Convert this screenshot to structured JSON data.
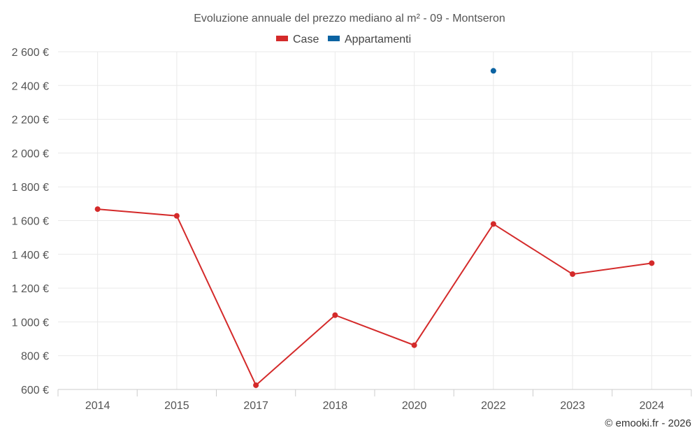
{
  "chart_data": {
    "type": "line",
    "title": "Evoluzione annuale del prezzo mediano al m² - 09 - Montseron",
    "categories": [
      "2014",
      "2015",
      "2017",
      "2018",
      "2020",
      "2022",
      "2023",
      "2024"
    ],
    "series": [
      {
        "name": "Case",
        "color": "#d42a2a",
        "values": [
          1668,
          1628,
          625,
          1040,
          862,
          1580,
          1283,
          1348
        ]
      },
      {
        "name": "Appartamenti",
        "color": "#0b63a2",
        "values": [
          null,
          null,
          null,
          null,
          null,
          2487,
          null,
          null
        ]
      }
    ],
    "y_ticks": [
      "600 €",
      "800 €",
      "1 000 €",
      "1 200 €",
      "1 400 €",
      "1 600 €",
      "1 800 €",
      "2 000 €",
      "2 200 €",
      "2 400 €",
      "2 600 €"
    ],
    "ylim": [
      600,
      2600
    ],
    "grid": true,
    "legend_position": "top-center"
  },
  "credit": "© emooki.fr - 2026"
}
